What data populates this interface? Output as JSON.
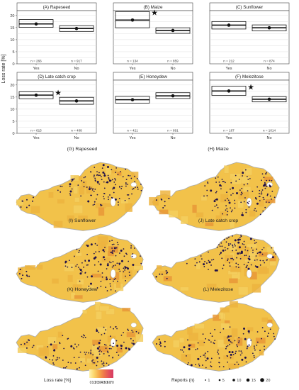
{
  "y_axis_label": "Loss rate [%]",
  "chart_data": [
    {
      "type": "box",
      "title": "(A) Rapeseed",
      "categories": [
        "Yes",
        "No"
      ],
      "n_labels": [
        "n = 266",
        "n = 917"
      ],
      "median": [
        16.5,
        14.6
      ],
      "q1": [
        15.1,
        13.4
      ],
      "q3": [
        18.3,
        15.8
      ],
      "star": false,
      "ylim": [
        0,
        22
      ],
      "yticks": [
        0,
        5,
        10,
        15,
        20
      ]
    },
    {
      "type": "box",
      "title": "(B) Maize",
      "categories": [
        "Yes",
        "No"
      ],
      "n_labels": [
        "n = 134",
        "n = 859"
      ],
      "median": [
        18.1,
        13.8
      ],
      "q1": [
        14.9,
        12.6
      ],
      "q3": [
        21.6,
        14.9
      ],
      "star": true,
      "ylim": [
        0,
        22
      ],
      "yticks": [
        0,
        5,
        10,
        15,
        20
      ]
    },
    {
      "type": "box",
      "title": "(C) Sunflower",
      "categories": [
        "Yes",
        "No"
      ],
      "n_labels": [
        "n = 212",
        "n = 874"
      ],
      "median": [
        16.0,
        14.9
      ],
      "q1": [
        14.4,
        13.6
      ],
      "q3": [
        17.5,
        16.1
      ],
      "star": false,
      "ylim": [
        0,
        22
      ],
      "yticks": [
        0,
        5,
        10,
        15,
        20
      ]
    },
    {
      "type": "box",
      "title": "(D) Late catch crop",
      "categories": [
        "Yes",
        "No"
      ],
      "n_labels": [
        "n = 615",
        "n = 408"
      ],
      "median": [
        15.8,
        13.4
      ],
      "q1": [
        14.3,
        12.0
      ],
      "q3": [
        17.2,
        14.9
      ],
      "star": true,
      "ylim": [
        0,
        22
      ],
      "yticks": [
        0,
        5,
        10,
        15,
        20
      ]
    },
    {
      "type": "box",
      "title": "(E) Honeydew",
      "categories": [
        "Yes",
        "No"
      ],
      "n_labels": [
        "n = 421",
        "n = 891"
      ],
      "median": [
        13.9,
        15.5
      ],
      "q1": [
        12.5,
        14.4
      ],
      "q3": [
        15.3,
        16.8
      ],
      "star": false,
      "ylim": [
        0,
        22
      ],
      "yticks": [
        0,
        5,
        10,
        15,
        20
      ]
    },
    {
      "type": "box",
      "title": "(F) Melezitose",
      "categories": [
        "Yes",
        "No"
      ],
      "n_labels": [
        "n = 167",
        "n = 1014"
      ],
      "median": [
        17.5,
        14.1
      ],
      "q1": [
        15.7,
        13.0
      ],
      "q3": [
        19.5,
        15.2
      ],
      "star": true,
      "ylim": [
        0,
        22
      ],
      "yticks": [
        0,
        5,
        10,
        15,
        20
      ]
    }
  ],
  "maps": [
    {
      "title": "(G) Rapeseed",
      "focus": "northeast"
    },
    {
      "title": "(H) Maize",
      "focus": "east"
    },
    {
      "title": "(I) Sunflower",
      "focus": "east"
    },
    {
      "title": "(J) Late catch crop",
      "focus": "north"
    },
    {
      "title": "(K) Honeydew",
      "focus": "southeast"
    },
    {
      "title": "(L) Melezitose",
      "focus": "southeast"
    }
  ],
  "legend_loss": {
    "title": "Loss rate [%]",
    "ticks": [
      "0",
      "10",
      "20",
      "30",
      "40",
      "50",
      "60",
      "70"
    ],
    "colors": [
      "#fff3b0",
      "#fbd56b",
      "#f5a948",
      "#ef7a4a",
      "#e4535a",
      "#d63a64"
    ]
  },
  "legend_reports": {
    "title": "Reports (n)",
    "labels": [
      "1",
      "5",
      "10",
      "15",
      "20"
    ]
  },
  "colors": {
    "map_fill": "#f2c24a",
    "map_alt": "#eeb43f",
    "map_hot": "#e99838",
    "dot": "#22124a",
    "border": "#aaaaaa",
    "grid": "#dddddd"
  }
}
